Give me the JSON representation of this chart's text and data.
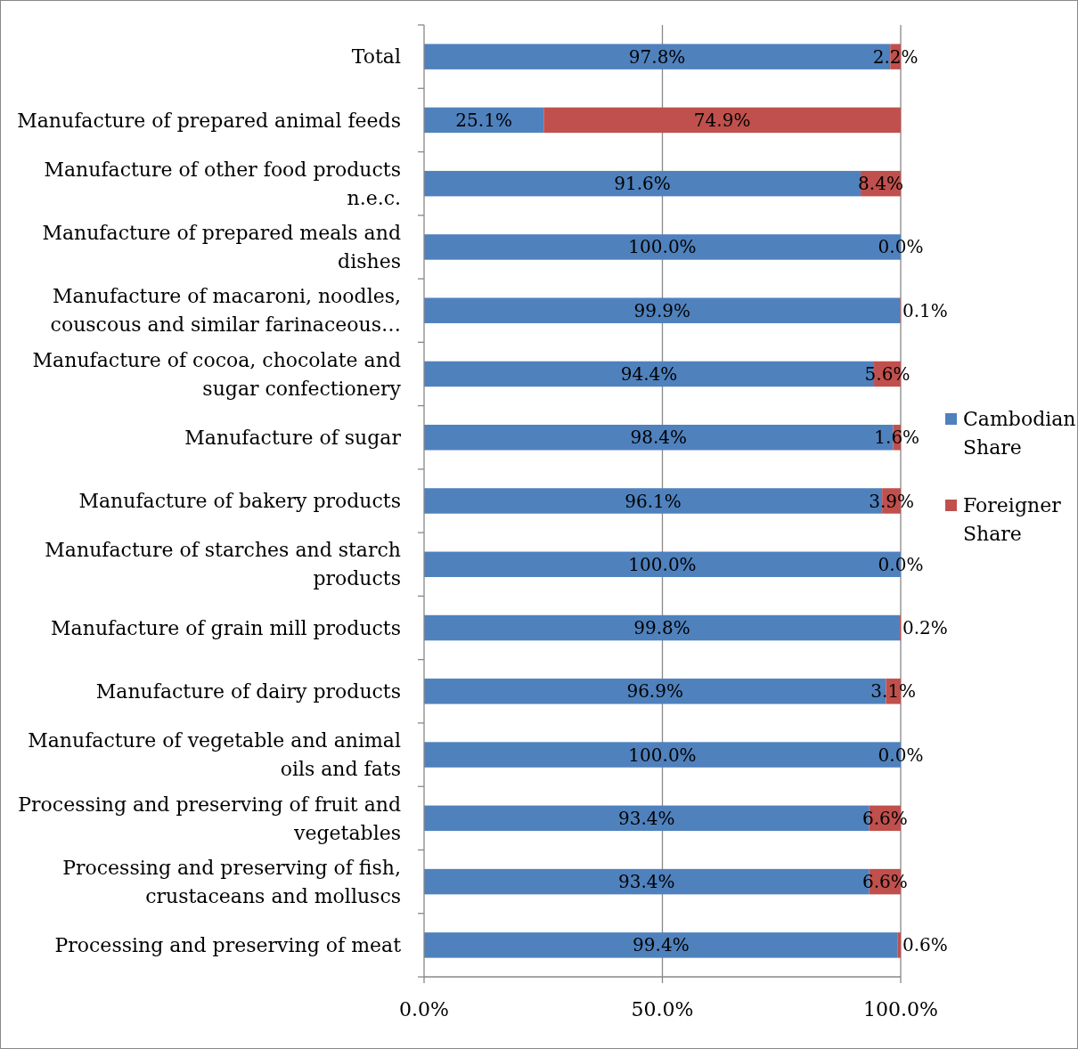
{
  "chart_data": {
    "type": "bar",
    "orientation": "horizontal",
    "stacked": true,
    "categories": [
      "Total",
      "Manufacture of prepared animal feeds",
      "Manufacture of other food products n.e.c.",
      "Manufacture of prepared meals and dishes",
      "Manufacture of macaroni, noodles, couscous and similar farinaceous…",
      "Manufacture of cocoa, chocolate and sugar confectionery",
      "Manufacture of sugar",
      "Manufacture of bakery products",
      "Manufacture of starches and starch products",
      "Manufacture of grain mill products",
      "Manufacture of dairy products",
      "Manufacture of vegetable and animal oils and fats",
      "Processing and preserving of fruit and vegetables",
      "Processing and preserving of fish, crustaceans and molluscs",
      "Processing and preserving of meat"
    ],
    "series": [
      {
        "name": "Cambodian Share",
        "color": "#4f81bd",
        "values": [
          97.8,
          25.1,
          91.6,
          100.0,
          99.9,
          94.4,
          98.4,
          96.1,
          100.0,
          99.8,
          96.9,
          100.0,
          93.4,
          93.4,
          99.4
        ],
        "value_labels": [
          "97.8%",
          "25.1%",
          "91.6%",
          "100.0%",
          "99.9%",
          "94.4%",
          "98.4%",
          "96.1%",
          "100.0%",
          "99.8%",
          "96.9%",
          "100.0%",
          "93.4%",
          "93.4%",
          "99.4%"
        ]
      },
      {
        "name": "Foreigner Share",
        "color": "#c0504d",
        "values": [
          2.2,
          74.9,
          8.4,
          0.0,
          0.1,
          5.6,
          1.6,
          3.9,
          0.0,
          0.2,
          3.1,
          0.0,
          6.6,
          6.6,
          0.6
        ],
        "value_labels": [
          "2.2%",
          "74.9%",
          "8.4%",
          "0.0%",
          "0.1%",
          "5.6%",
          "1.6%",
          "3.9%",
          "0.0%",
          "0.2%",
          "3.1%",
          "0.0%",
          "6.6%",
          "6.6%",
          "0.6%"
        ]
      }
    ],
    "xlim": [
      0,
      100
    ],
    "xticks": [
      {
        "value": 0,
        "label": "0.0%"
      },
      {
        "value": 50,
        "label": "50.0%"
      },
      {
        "value": 100,
        "label": "100.0%"
      }
    ],
    "grid": "x",
    "legend": "right"
  }
}
